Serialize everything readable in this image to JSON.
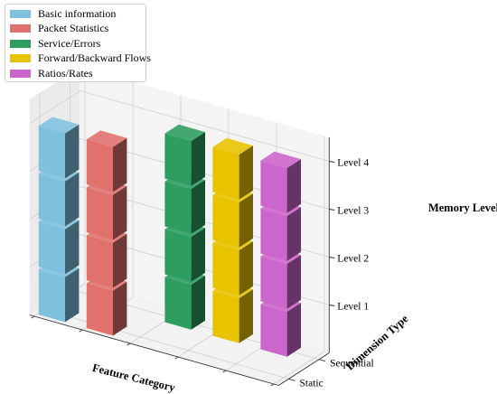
{
  "chart_data": {
    "type": "bar",
    "subtype": "3d-stacked-block",
    "title": "",
    "xlabel": "Feature Category",
    "ylabel": "Dimension Type",
    "zlabel": "Memory Level",
    "y_ticks": [
      "Static",
      "Sequential"
    ],
    "z_ticks": [
      "Level 1",
      "Level 2",
      "Level 3",
      "Level 4"
    ],
    "z_range": [
      0,
      4
    ],
    "grid": true,
    "legend_position": "top-left",
    "categories": [
      "Basic information",
      "Packet Statistics",
      "Service/Errors",
      "Forward/Backward Flows",
      "Ratios/Rates"
    ],
    "series": [
      {
        "name": "Basic information",
        "color": "#7ec1de",
        "dimension": "Static",
        "levels": [
          1,
          2,
          3,
          4
        ]
      },
      {
        "name": "Packet Statistics",
        "color": "#e0726e",
        "dimension": "Static",
        "levels": [
          1,
          2,
          3,
          4
        ]
      },
      {
        "name": "Service/Errors",
        "color": "#2e9e60",
        "dimension": "Sequential",
        "levels": [
          1,
          2,
          3,
          4
        ]
      },
      {
        "name": "Forward/Backward Flows",
        "color": "#e8c300",
        "dimension": "Sequential",
        "levels": [
          1,
          2,
          3,
          4
        ]
      },
      {
        "name": "Ratios/Rates",
        "color": "#cc66cc",
        "dimension": "Sequential",
        "levels": [
          1,
          2,
          3,
          4
        ]
      }
    ]
  }
}
